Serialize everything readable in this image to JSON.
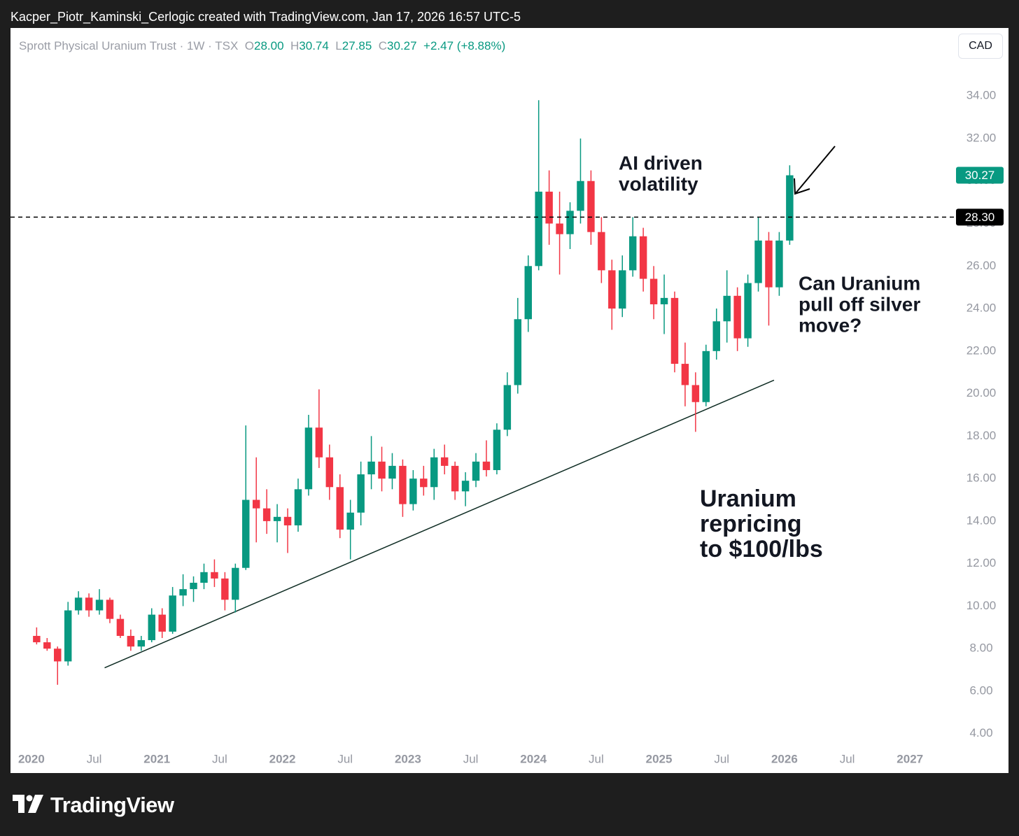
{
  "header": {
    "caption": "Kacper_Piotr_Kaminski_Cerlogic created with TradingView.com, Jan 17, 2026 16:57 UTC-5"
  },
  "chart_data": {
    "type": "candlestick",
    "title": "Sprott Physical Uranium Trust · 1W · TSX",
    "legend": {
      "o_label": "O",
      "open": "28.00",
      "h_label": "H",
      "high": "30.74",
      "l_label": "L",
      "low": "27.85",
      "c_label": "C",
      "close": "30.27",
      "change": "+2.47 (+8.88%)"
    },
    "currency": "CAD",
    "x": [
      "2020-01",
      "2020-02",
      "2020-03",
      "2020-04",
      "2020-05",
      "2020-06",
      "2020-07",
      "2020-08",
      "2020-09",
      "2020-10",
      "2020-11",
      "2020-12",
      "2021-01",
      "2021-02",
      "2021-03",
      "2021-04",
      "2021-05",
      "2021-06",
      "2021-07",
      "2021-08",
      "2021-09",
      "2021-10",
      "2021-11",
      "2021-12",
      "2022-01",
      "2022-02",
      "2022-03",
      "2022-04",
      "2022-05",
      "2022-06",
      "2022-07",
      "2022-08",
      "2022-09",
      "2022-10",
      "2022-11",
      "2022-12",
      "2023-01",
      "2023-02",
      "2023-03",
      "2023-04",
      "2023-05",
      "2023-06",
      "2023-07",
      "2023-08",
      "2023-09",
      "2023-10",
      "2023-11",
      "2023-12",
      "2024-01",
      "2024-02",
      "2024-03",
      "2024-04",
      "2024-05",
      "2024-06",
      "2024-07",
      "2024-08",
      "2024-09",
      "2024-10",
      "2024-11",
      "2024-12",
      "2025-01",
      "2025-02",
      "2025-03",
      "2025-04",
      "2025-05",
      "2025-06",
      "2025-07",
      "2025-08",
      "2025-09",
      "2025-10",
      "2025-11",
      "2025-12",
      "2026-01"
    ],
    "open": [
      8.6,
      8.3,
      8.0,
      7.4,
      9.8,
      10.4,
      9.8,
      10.3,
      9.4,
      8.6,
      8.1,
      8.4,
      9.6,
      8.8,
      10.5,
      10.8,
      11.1,
      11.6,
      11.3,
      10.3,
      11.8,
      15.0,
      14.6,
      14.0,
      14.2,
      13.8,
      15.5,
      18.4,
      17.0,
      15.6,
      13.6,
      14.4,
      16.2,
      16.8,
      16.0,
      16.6,
      14.8,
      16.0,
      15.6,
      17.0,
      16.6,
      15.4,
      15.9,
      16.8,
      16.4,
      18.3,
      20.4,
      23.5,
      26.0,
      29.5,
      28.0,
      27.5,
      28.6,
      30.0,
      27.6,
      25.8,
      24.0,
      25.8,
      27.4,
      25.4,
      24.2,
      24.5,
      21.4,
      20.4,
      19.6,
      22.0,
      23.4,
      24.6,
      22.6,
      25.2,
      27.2,
      25.0,
      27.2
    ],
    "high": [
      9.0,
      8.5,
      8.1,
      10.2,
      10.7,
      10.6,
      10.8,
      10.4,
      9.6,
      8.9,
      8.6,
      9.9,
      9.9,
      10.9,
      11.5,
      11.4,
      12.0,
      12.2,
      11.6,
      12.0,
      18.5,
      17.0,
      15.5,
      14.8,
      14.6,
      16.0,
      19.0,
      20.2,
      17.6,
      16.2,
      15.0,
      16.8,
      18.0,
      17.5,
      17.2,
      16.9,
      16.4,
      16.6,
      17.4,
      17.6,
      16.8,
      16.3,
      17.2,
      17.8,
      18.6,
      21.0,
      24.5,
      26.5,
      33.8,
      30.5,
      29.5,
      29.0,
      32.0,
      30.5,
      28.3,
      26.3,
      26.5,
      28.3,
      27.8,
      26.0,
      25.6,
      24.8,
      22.4,
      21.0,
      22.3,
      24.0,
      25.8,
      25.0,
      25.6,
      28.3,
      27.6,
      27.6,
      30.74
    ],
    "low": [
      8.2,
      7.9,
      6.3,
      7.2,
      9.6,
      9.5,
      9.6,
      9.2,
      8.5,
      7.9,
      7.9,
      8.3,
      8.5,
      8.7,
      10.0,
      10.2,
      10.8,
      10.9,
      9.8,
      9.7,
      11.7,
      13.0,
      13.4,
      13.0,
      12.5,
      13.5,
      15.2,
      16.5,
      15.0,
      13.2,
      12.2,
      13.8,
      15.5,
      15.4,
      15.5,
      14.2,
      14.5,
      15.2,
      15.0,
      16.2,
      15.0,
      14.7,
      15.6,
      16.1,
      16.2,
      18.0,
      20.0,
      22.9,
      25.8,
      27.0,
      25.6,
      26.8,
      28.0,
      27.0,
      25.2,
      23.0,
      23.6,
      25.5,
      24.8,
      23.5,
      22.8,
      21.0,
      19.4,
      18.2,
      19.4,
      21.6,
      22.4,
      22.0,
      22.2,
      24.8,
      23.2,
      24.6,
      27.0
    ],
    "close": [
      8.3,
      8.0,
      7.4,
      9.8,
      10.4,
      9.8,
      10.3,
      9.4,
      8.6,
      8.1,
      8.4,
      9.6,
      8.8,
      10.5,
      10.8,
      11.1,
      11.6,
      11.3,
      10.3,
      11.8,
      15.0,
      14.6,
      14.0,
      14.2,
      13.8,
      15.5,
      18.4,
      17.0,
      15.6,
      13.6,
      14.4,
      16.2,
      16.8,
      16.0,
      16.6,
      14.8,
      16.0,
      15.6,
      17.0,
      16.6,
      15.4,
      15.9,
      16.8,
      16.4,
      18.3,
      20.4,
      23.5,
      26.0,
      29.5,
      28.0,
      27.5,
      28.6,
      30.0,
      27.6,
      25.8,
      24.0,
      25.8,
      27.4,
      25.4,
      24.2,
      24.5,
      21.4,
      20.4,
      19.6,
      22.0,
      23.4,
      24.6,
      22.6,
      25.2,
      27.2,
      25.0,
      27.2,
      30.27
    ],
    "up_color": "#089981",
    "down_color": "#f23645",
    "xlim": [
      "2019-11",
      "2027-05"
    ],
    "xticks": [
      {
        "value": "2020-01",
        "label": "2020"
      },
      {
        "value": "2020-07",
        "label": "Jul"
      },
      {
        "value": "2021-01",
        "label": "2021"
      },
      {
        "value": "2021-07",
        "label": "Jul"
      },
      {
        "value": "2022-01",
        "label": "2022"
      },
      {
        "value": "2022-07",
        "label": "Jul"
      },
      {
        "value": "2023-01",
        "label": "2023"
      },
      {
        "value": "2023-07",
        "label": "Jul"
      },
      {
        "value": "2024-01",
        "label": "2024"
      },
      {
        "value": "2024-07",
        "label": "Jul"
      },
      {
        "value": "2025-01",
        "label": "2025"
      },
      {
        "value": "2025-07",
        "label": "Jul"
      },
      {
        "value": "2026-01",
        "label": "2026"
      },
      {
        "value": "2026-07",
        "label": "Jul"
      },
      {
        "value": "2027-01",
        "label": "2027"
      }
    ],
    "ylim": [
      3.3,
      37.2
    ],
    "yticks": [
      {
        "value": 4,
        "label": "4.00"
      },
      {
        "value": 6,
        "label": "6.00"
      },
      {
        "value": 8,
        "label": "8.00"
      },
      {
        "value": 10,
        "label": "10.00"
      },
      {
        "value": 12,
        "label": "12.00"
      },
      {
        "value": 14,
        "label": "14.00"
      },
      {
        "value": 16,
        "label": "16.00"
      },
      {
        "value": 18,
        "label": "18.00"
      },
      {
        "value": 20,
        "label": "20.00"
      },
      {
        "value": 22,
        "label": "22.00"
      },
      {
        "value": 24,
        "label": "24.00"
      },
      {
        "value": 26,
        "label": "26.00"
      },
      {
        "value": 28,
        "label": "28.00"
      },
      {
        "value": 30,
        "label": "30.00"
      },
      {
        "value": 32,
        "label": "32.00"
      },
      {
        "value": 34,
        "label": "34.00"
      }
    ],
    "grid": false,
    "last_price": {
      "value": 30.27,
      "label": "30.27"
    },
    "level": {
      "value": 28.3,
      "label": "28.30"
    },
    "trendline": {
      "x": [
        "2020-08",
        "2025-12"
      ],
      "y": [
        7.1,
        20.63
      ]
    },
    "annotations": [
      {
        "lines": [
          "AI driven",
          "volatility"
        ]
      },
      {
        "lines": [
          "Can Uranium",
          "pull off silver",
          "move?"
        ]
      },
      {
        "lines": [
          "Uranium",
          "repricing",
          "to $100/lbs"
        ]
      }
    ]
  },
  "footer": {
    "brand": "TradingView"
  }
}
